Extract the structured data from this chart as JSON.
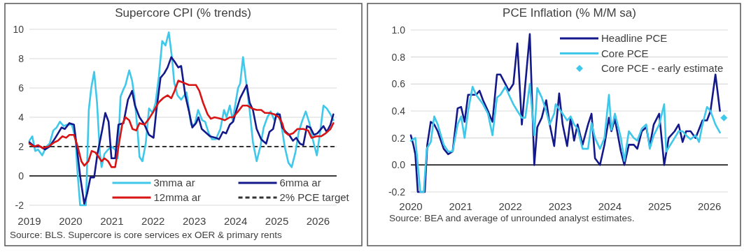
{
  "chart_data": [
    {
      "type": "line",
      "title": "Supercore CPI (% trends)",
      "xlim": [
        2019,
        2026.45
      ],
      "xticks": [
        2019,
        2020,
        2021,
        2022,
        2023,
        2024,
        2025,
        2026
      ],
      "ylim": [
        -2,
        10
      ],
      "yticks": [
        -2,
        0,
        2,
        4,
        6,
        8,
        10
      ],
      "grid": "y",
      "legend": "bottom",
      "annotations": [
        "Source: BLS. Supercore is core services ex OER & primary rents"
      ],
      "ref_lines": [
        {
          "axis": "y",
          "value": 2,
          "label": "2% PCE target",
          "color": "#333333",
          "line_style": "dashed"
        }
      ],
      "series": [
        {
          "name": "3mma ar",
          "color": "#3fc8ea",
          "x": [
            2019.0,
            2019.07,
            2019.14,
            2019.21,
            2019.31,
            2019.41,
            2019.49,
            2019.58,
            2019.66,
            2019.74,
            2019.83,
            2019.92,
            2020.03,
            2020.12,
            2020.16,
            2020.23,
            2020.37,
            2020.44,
            2020.5,
            2020.57,
            2020.64,
            2020.71,
            2020.75,
            2020.82,
            2020.91,
            2020.99,
            2021.08,
            2021.14,
            2021.21,
            2021.28,
            2021.33,
            2021.42,
            2021.49,
            2021.55,
            2021.62,
            2021.67,
            2021.74,
            2021.82,
            2021.9,
            2021.99,
            2022.06,
            2022.14,
            2022.22,
            2022.3,
            2022.38,
            2022.46,
            2022.51,
            2022.59,
            2022.68,
            2022.81,
            2022.92,
            2023.01,
            2023.09,
            2023.19,
            2023.26,
            2023.35,
            2023.43,
            2023.52,
            2023.63,
            2023.72,
            2023.78,
            2023.86,
            2023.93,
            2024.0,
            2024.06,
            2024.11,
            2024.18,
            2024.26,
            2024.34,
            2024.42,
            2024.51,
            2024.6,
            2024.68,
            2024.77,
            2024.85,
            2024.94,
            2025.02,
            2025.11,
            2025.19,
            2025.28,
            2025.36,
            2025.45,
            2025.53,
            2025.62,
            2025.7,
            2025.79,
            2025.87,
            2025.97,
            2026.05,
            2026.13,
            2026.21,
            2026.3,
            2026.37
          ],
          "values": [
            2.4,
            2.7,
            1.7,
            1.8,
            1.4,
            2.0,
            2.2,
            3.1,
            3.3,
            3.7,
            3.4,
            3.5,
            3.5,
            2.5,
            0.5,
            -2,
            -2,
            4.5,
            6.0,
            7.1,
            5.0,
            1.5,
            0.6,
            1.5,
            1.8,
            2.0,
            1.8,
            1.2,
            5.4,
            5.9,
            6.2,
            7.2,
            6.5,
            5.3,
            3.2,
            1.3,
            1.0,
            2.2,
            4.6,
            4.3,
            5.0,
            6.8,
            9.2,
            8.9,
            9.8,
            8.0,
            6.4,
            5.5,
            5.2,
            5.7,
            3.5,
            3.5,
            4.5,
            3.8,
            3.7,
            2.9,
            2.5,
            2.5,
            3.2,
            4.5,
            4.0,
            4.8,
            3.8,
            5.0,
            6.0,
            6.3,
            8.1,
            6.3,
            4.5,
            2.3,
            1.0,
            2.0,
            3.3,
            4.0,
            4.4,
            3.8,
            4.3,
            3.5,
            2.0,
            0.9,
            0.6,
            1.6,
            3.0,
            3.8,
            4.4,
            3.6,
            2.5,
            1.4,
            3.0,
            4.8,
            4.6,
            4.2,
            3.8
          ]
        },
        {
          "name": "6mma ar",
          "color": "#13198a",
          "x": [
            2019.0,
            2019.12,
            2019.27,
            2019.38,
            2019.49,
            2019.63,
            2019.78,
            2019.86,
            2019.97,
            2020.08,
            2020.14,
            2020.23,
            2020.33,
            2020.4,
            2020.48,
            2020.57,
            2020.65,
            2020.77,
            2020.84,
            2020.92,
            2020.99,
            2021.08,
            2021.16,
            2021.28,
            2021.39,
            2021.49,
            2021.56,
            2021.67,
            2021.79,
            2021.9,
            2022.01,
            2022.08,
            2022.18,
            2022.27,
            2022.35,
            2022.44,
            2022.52,
            2022.61,
            2022.68,
            2022.78,
            2022.87,
            2022.95,
            2023.04,
            2023.1,
            2023.18,
            2023.26,
            2023.38,
            2023.52,
            2023.6,
            2023.69,
            2023.77,
            2023.86,
            2023.94,
            2024.03,
            2024.11,
            2024.2,
            2024.27,
            2024.34,
            2024.42,
            2024.51,
            2024.62,
            2024.74,
            2024.82,
            2024.91,
            2024.99,
            2025.07,
            2025.13,
            2025.22,
            2025.3,
            2025.39,
            2025.47,
            2025.56,
            2025.64,
            2025.73,
            2025.81,
            2025.9,
            2025.98,
            2026.07,
            2026.13,
            2026.21,
            2026.3,
            2026.37
          ],
          "values": [
            2.3,
            2.0,
            2.0,
            1.8,
            2.0,
            2.6,
            3.3,
            3.2,
            3.6,
            3.5,
            2.2,
            0,
            -1.9,
            -1.2,
            -0.1,
            -0.1,
            1.5,
            3.2,
            4.3,
            3.7,
            1.2,
            1.2,
            3.5,
            3.6,
            5.2,
            5.8,
            4.8,
            4.0,
            3.5,
            2.8,
            2.6,
            4.5,
            6.7,
            7.0,
            7.4,
            8.1,
            7.8,
            7.4,
            7.5,
            5.5,
            4.4,
            3.3,
            3.6,
            4.0,
            3.2,
            3.0,
            2.7,
            2.6,
            2.5,
            3.0,
            2.9,
            3.5,
            3.7,
            4.6,
            5.3,
            5.8,
            6.2,
            5.0,
            4.5,
            3.2,
            2.5,
            2.2,
            3.0,
            3.2,
            4.2,
            4.2,
            3.3,
            3.0,
            2.8,
            2.4,
            2.6,
            2.2,
            2.1,
            3.4,
            3.3,
            2.8,
            2.9,
            3.2,
            3.4,
            3.0,
            3.5,
            4.2
          ]
        },
        {
          "name": "12mma ar",
          "color": "#d81414",
          "x": [
            2019.0,
            2019.12,
            2019.21,
            2019.32,
            2019.46,
            2019.61,
            2019.69,
            2019.8,
            2019.89,
            2019.97,
            2020.08,
            2020.17,
            2020.26,
            2020.33,
            2020.43,
            2020.51,
            2020.6,
            2020.68,
            2020.75,
            2020.82,
            2020.91,
            2020.99,
            2021.08,
            2021.16,
            2021.25,
            2021.33,
            2021.42,
            2021.5,
            2021.59,
            2021.67,
            2021.79,
            2021.9,
            2022.01,
            2022.13,
            2022.24,
            2022.35,
            2022.44,
            2022.52,
            2022.61,
            2022.87,
            2023.04,
            2023.12,
            2023.21,
            2023.32,
            2023.4,
            2023.49,
            2023.63,
            2023.74,
            2023.86,
            2023.94,
            2024.06,
            2024.17,
            2024.28,
            2024.4,
            2024.51,
            2024.62,
            2024.71,
            2024.82,
            2024.94,
            2025.05,
            2025.13,
            2025.19,
            2025.28,
            2025.39,
            2025.5,
            2025.64,
            2025.76,
            2025.84,
            2025.96,
            2026.07,
            2026.18,
            2026.3,
            2026.37
          ],
          "values": [
            2.2,
            2.0,
            2.1,
            1.9,
            2.0,
            2.3,
            2.4,
            2.7,
            2.6,
            2.8,
            2.8,
            2.0,
            1.0,
            0.7,
            1.0,
            1.7,
            1.6,
            1.3,
            1.0,
            1.2,
            1.0,
            0.6,
            0.6,
            2.0,
            3.5,
            4.0,
            3.8,
            3.2,
            3.1,
            3.6,
            3.5,
            3.9,
            4.4,
            5.0,
            5.3,
            5.5,
            5.3,
            5.8,
            6.5,
            6.2,
            6.2,
            5.8,
            5.0,
            4.2,
            3.9,
            4.0,
            3.9,
            3.8,
            4.0,
            4.0,
            4.4,
            4.8,
            4.8,
            4.6,
            4.5,
            4.5,
            4.3,
            4.3,
            4.2,
            4.0,
            3.6,
            3.0,
            2.8,
            2.9,
            3.2,
            3.2,
            3.1,
            2.6,
            2.7,
            2.7,
            2.9,
            3.2,
            3.6
          ]
        }
      ]
    },
    {
      "type": "line",
      "title": "PCE Inflation (% M/M sa)",
      "xlim": [
        2020,
        2026.37
      ],
      "xticks": [
        2020,
        2021,
        2022,
        2023,
        2024,
        2025,
        2026
      ],
      "ylim": [
        -0.2,
        1.0
      ],
      "yticks": [
        -0.2,
        {
          "value": 0,
          "label": "0.0"
        },
        0.2,
        0.4,
        0.6,
        0.8,
        {
          "value": 1,
          "label": "1.0"
        }
      ],
      "grid": "y",
      "legend": "top right",
      "annotations": [
        "Source: BEA and average of unrounded analyst estimates."
      ],
      "series": [
        {
          "name": "Headline PCE",
          "color": "#13198a",
          "x": [
            2020.0,
            2020.05,
            2020.09,
            2020.14,
            2020.28,
            2020.33,
            2020.4,
            2020.47,
            2020.54,
            2020.66,
            2020.75,
            2020.84,
            2020.94,
            2021.01,
            2021.08,
            2021.15,
            2021.22,
            2021.31,
            2021.38,
            2021.45,
            2021.55,
            2021.64,
            2021.73,
            2021.8,
            2021.9,
            2021.97,
            2022.06,
            2022.14,
            2022.23,
            2022.3,
            2022.39,
            2022.48,
            2022.54,
            2022.63,
            2022.72,
            2022.79,
            2022.88,
            2022.98,
            2023.05,
            2023.14,
            2023.21,
            2023.28,
            2023.35,
            2023.45,
            2023.56,
            2023.63,
            2023.7,
            2023.8,
            2023.89,
            2023.98,
            2024.03,
            2024.1,
            2024.22,
            2024.29,
            2024.38,
            2024.48,
            2024.55,
            2024.64,
            2024.73,
            2024.8,
            2024.88,
            2024.99,
            2025.09,
            2025.18,
            2025.3,
            2025.38,
            2025.46,
            2025.53,
            2025.62,
            2025.72,
            2025.86,
            2025.95,
            2026.02,
            2026.12,
            2026.21
          ],
          "values": [
            0.22,
            0.15,
            0.08,
            -0.2,
            -0.2,
            0.15,
            0.32,
            0.3,
            0.25,
            0.12,
            0.08,
            0.1,
            0.42,
            0.43,
            0.32,
            0.52,
            0.52,
            0.52,
            0.55,
            0.48,
            0.4,
            0.32,
            0.67,
            0.67,
            0.6,
            0.55,
            0.6,
            0.9,
            0.3,
            0.6,
            0.97,
            0.0,
            0.28,
            0.35,
            0.48,
            0.3,
            0.14,
            0.53,
            0.3,
            0.14,
            0.35,
            0.18,
            0.3,
            0.15,
            0.3,
            0.38,
            0.05,
            0.0,
            0.15,
            0.35,
            0.25,
            0.34,
            0.1,
            0.0,
            0.15,
            0.15,
            0.12,
            0.25,
            0.28,
            0.14,
            0.3,
            0.38,
            0.0,
            0.2,
            0.25,
            0.3,
            0.17,
            0.25,
            0.25,
            0.2,
            0.33,
            0.33,
            0.4,
            0.67,
            0.4
          ]
        },
        {
          "name": "Core PCE",
          "color": "#3fc8ea",
          "x": [
            2020.0,
            2020.09,
            2020.14,
            2020.19,
            2020.26,
            2020.32,
            2020.4,
            2020.47,
            2020.54,
            2020.66,
            2020.75,
            2020.84,
            2020.94,
            2021.01,
            2021.08,
            2021.15,
            2021.24,
            2021.31,
            2021.45,
            2021.55,
            2021.64,
            2021.73,
            2021.8,
            2021.9,
            2021.97,
            2022.06,
            2022.14,
            2022.23,
            2022.3,
            2022.39,
            2022.48,
            2022.54,
            2022.63,
            2022.72,
            2022.79,
            2022.88,
            2022.91,
            2023.05,
            2023.14,
            2023.21,
            2023.28,
            2023.35,
            2023.45,
            2023.56,
            2023.63,
            2023.7,
            2023.8,
            2023.89,
            2023.98,
            2024.03,
            2024.1,
            2024.22,
            2024.29,
            2024.38,
            2024.48,
            2024.55,
            2024.64,
            2024.73,
            2024.8,
            2024.88,
            2024.99,
            2025.09,
            2025.13,
            2025.3,
            2025.38,
            2025.46,
            2025.53,
            2025.62,
            2025.72,
            2025.79,
            2025.86,
            2025.95,
            2026.02,
            2026.12,
            2026.21
          ],
          "values": [
            0.18,
            0.2,
            0.0,
            -0.2,
            -0.2,
            0.12,
            0.17,
            0.36,
            0.3,
            0.15,
            0.1,
            0.1,
            0.3,
            0.36,
            0.2,
            0.4,
            0.58,
            0.52,
            0.45,
            0.38,
            0.22,
            0.5,
            0.52,
            0.58,
            0.52,
            0.45,
            0.4,
            0.35,
            0.35,
            0.6,
            0.22,
            0.57,
            0.5,
            0.4,
            0.3,
            0.38,
            0.45,
            0.38,
            0.33,
            0.36,
            0.3,
            0.27,
            0.12,
            0.12,
            0.31,
            0.2,
            0.12,
            0.2,
            0.52,
            0.26,
            0.38,
            0.2,
            0.03,
            0.25,
            0.2,
            0.18,
            0.27,
            0.3,
            0.12,
            0.22,
            0.3,
            0.45,
            0.1,
            0.2,
            0.25,
            0.25,
            0.22,
            0.19,
            0.22,
            0.17,
            0.3,
            0.43,
            0.4,
            0.3,
            0.24
          ]
        },
        {
          "name": "Core PCE - early estimate",
          "type": "scatter",
          "marker": "diamond",
          "color": "#3fc8ea",
          "x": [
            2026.29
          ],
          "values": [
            0.35
          ]
        }
      ]
    }
  ]
}
